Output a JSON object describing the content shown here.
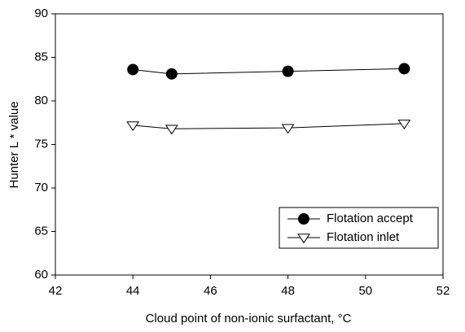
{
  "chart_data": {
    "type": "line",
    "x_label": "Cloud point of non-ionic surfactant, °C",
    "y_label": "Hunter L * value",
    "x": [
      44,
      45,
      48,
      51
    ],
    "series": [
      {
        "name": "Flotation accept",
        "color": "#000000",
        "marker": "circle",
        "filled": true,
        "values": [
          83.6,
          83.1,
          83.4,
          83.7
        ]
      },
      {
        "name": "Flotation inlet",
        "color": "#000000",
        "marker": "triangle-down",
        "filled": false,
        "values": [
          77.2,
          76.8,
          76.9,
          77.4
        ]
      }
    ],
    "xlim": [
      42,
      52
    ],
    "xticks": [
      42,
      44,
      46,
      48,
      50,
      52
    ],
    "ylim": [
      60,
      90
    ],
    "yticks": [
      60,
      65,
      70,
      75,
      80,
      85,
      90
    ],
    "grid": false,
    "legend": "lower-right"
  }
}
